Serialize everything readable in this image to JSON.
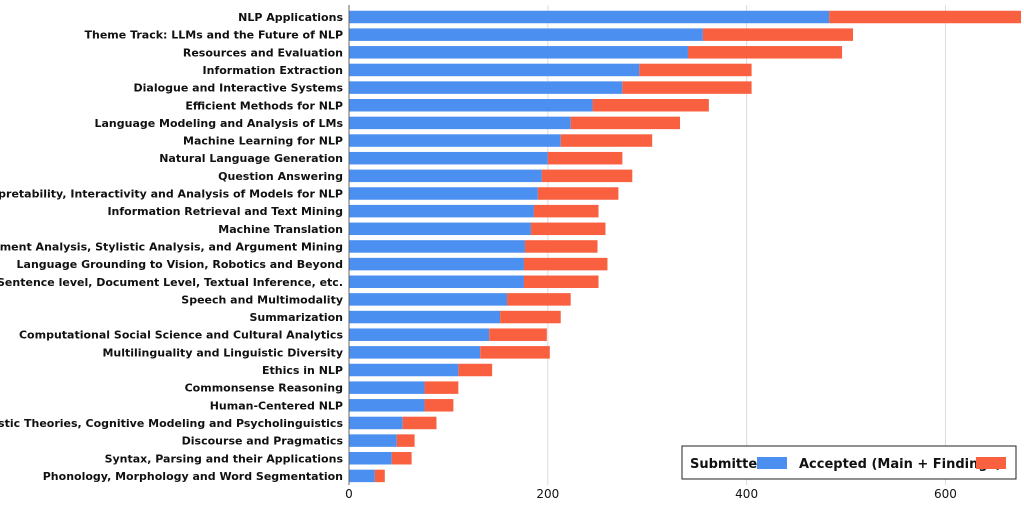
{
  "chart_data": {
    "type": "bar",
    "orientation": "horizontal",
    "stacked": true,
    "categories": [
      "NLP Applications",
      "Theme Track: LLMs and the Future of NLP",
      "Resources and Evaluation",
      "Information Extraction",
      "Dialogue and Interactive Systems",
      "Efficient Methods for NLP",
      "Language Modeling and Analysis of LMs",
      "Machine Learning for NLP",
      "Natural Language Generation",
      "Question Answering",
      "Interpretability, Interactivity and Analysis of Models for NLP",
      "Information Retrieval and Text Mining",
      "Machine Translation",
      "Sentiment Analysis, Stylistic Analysis, and Argument Mining",
      "Language Grounding to Vision, Robotics and Beyond",
      "Semantics: Lexical, Sentence level, Document Level, Textual Inference, etc.",
      "Speech and Multimodality",
      "Summarization",
      "Computational Social Science and Cultural Analytics",
      "Multilinguality and Linguistic Diversity",
      "Ethics in NLP",
      "Commonsense Reasoning",
      "Human-Centered NLP",
      "Linguistic Theories, Cognitive Modeling and Psycholinguistics",
      "Discourse and Pragmatics",
      "Syntax, Parsing and their Applications",
      "Phonology, Morphology and Word Segmentation"
    ],
    "series": [
      {
        "name": "Submitted",
        "color": "#4b8ff0",
        "values": [
          483,
          356,
          341,
          292,
          275,
          245,
          223,
          213,
          200,
          194,
          190,
          186,
          183,
          177,
          176,
          176,
          159,
          152,
          141,
          132,
          110,
          76,
          76,
          54,
          48,
          43,
          26
        ]
      },
      {
        "name": "Accepted (Main + Findings)",
        "color": "#f9603f",
        "values": [
          193,
          151,
          155,
          113,
          130,
          117,
          110,
          92,
          75,
          91,
          81,
          65,
          75,
          73,
          84,
          75,
          64,
          61,
          58,
          70,
          34,
          34,
          29,
          34,
          18,
          20,
          10
        ]
      }
    ],
    "xlim": [
      0,
      675
    ],
    "xticks": [
      0,
      200,
      400,
      600
    ],
    "grid": true,
    "legend_position": "bottom-right",
    "title": "",
    "xlabel": "",
    "ylabel": ""
  }
}
